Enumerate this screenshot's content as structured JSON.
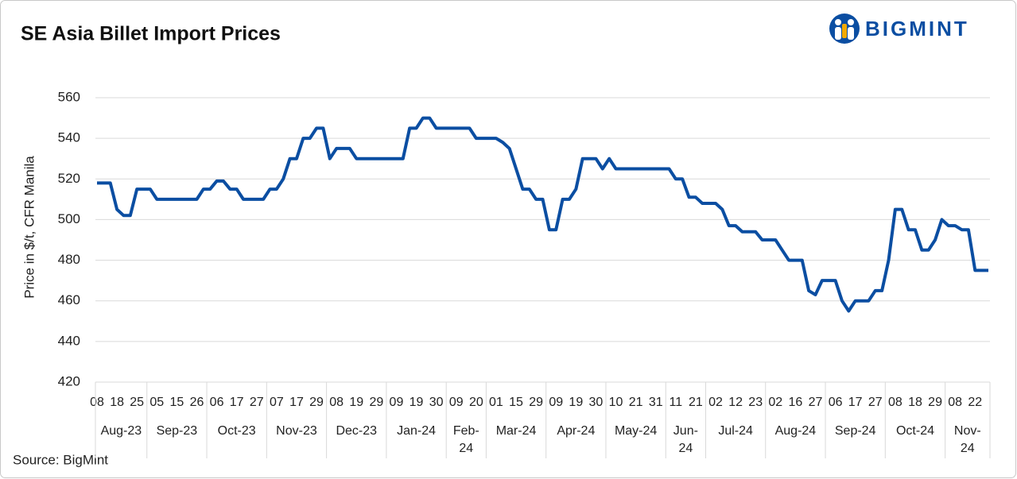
{
  "chart_data": {
    "type": "line",
    "title": "SE Asia Billet Import Prices",
    "brand": "BIGMINT",
    "source": "Source: BigMint",
    "y_label": "Price in $/t, CFR Manila",
    "color": "#0b4ea2",
    "ylim": [
      420,
      560
    ],
    "yticks": [
      420,
      440,
      460,
      480,
      500,
      520,
      540,
      560
    ],
    "grid": true,
    "months": [
      "Aug-23",
      "Sep-23",
      "Oct-23",
      "Nov-23",
      "Dec-23",
      "Jan-24",
      "Feb-24",
      "Mar-24",
      "Apr-24",
      "May-24",
      "Jun-24",
      "Jul-24",
      "Aug-24",
      "Sep-24",
      "Oct-24",
      "Nov-24"
    ],
    "categories": [
      "08",
      null,
      null,
      "18",
      null,
      null,
      "25",
      null,
      null,
      "05",
      null,
      null,
      "15",
      null,
      null,
      "26",
      null,
      null,
      "06",
      null,
      null,
      "17",
      null,
      null,
      "27",
      null,
      null,
      "07",
      null,
      null,
      "17",
      null,
      null,
      "29",
      null,
      null,
      "08",
      null,
      null,
      "19",
      null,
      null,
      "29",
      null,
      null,
      "09",
      null,
      null,
      "19",
      null,
      null,
      "30",
      null,
      null,
      "09",
      null,
      null,
      "20",
      null,
      null,
      "01",
      null,
      null,
      "15",
      null,
      null,
      "29",
      null,
      null,
      "09",
      null,
      null,
      "19",
      null,
      null,
      "30",
      null,
      null,
      "10",
      null,
      null,
      "21",
      null,
      null,
      "31",
      null,
      null,
      "11",
      null,
      null,
      "21",
      null,
      null,
      "02",
      null,
      null,
      "12",
      null,
      null,
      "23",
      null,
      null,
      "02",
      null,
      null,
      "16",
      null,
      null,
      "27",
      null,
      null,
      "06",
      null,
      null,
      "17",
      null,
      null,
      "27",
      null,
      null,
      "08",
      null,
      null,
      "18",
      null,
      null,
      "29",
      null,
      null,
      "08",
      null,
      null,
      "22",
      null,
      null
    ],
    "values": [
      518,
      518,
      518,
      505,
      502,
      502,
      515,
      515,
      515,
      510,
      510,
      510,
      510,
      510,
      510,
      510,
      515,
      515,
      519,
      519,
      515,
      515,
      510,
      510,
      510,
      510,
      515,
      515,
      520,
      530,
      530,
      540,
      540,
      545,
      545,
      530,
      535,
      535,
      535,
      530,
      530,
      530,
      530,
      530,
      530,
      530,
      530,
      545,
      545,
      550,
      550,
      545,
      545,
      545,
      545,
      545,
      545,
      540,
      540,
      540,
      540,
      538,
      535,
      525,
      515,
      515,
      510,
      510,
      495,
      495,
      510,
      510,
      515,
      530,
      530,
      530,
      525,
      530,
      525,
      525,
      525,
      525,
      525,
      525,
      525,
      525,
      525,
      520,
      520,
      511,
      511,
      508,
      508,
      508,
      505,
      497,
      497,
      494,
      494,
      494,
      490,
      490,
      490,
      485,
      480,
      480,
      480,
      465,
      463,
      470,
      470,
      470,
      460,
      455,
      460,
      460,
      460,
      465,
      465,
      480,
      505,
      505,
      495,
      495,
      485,
      485,
      490,
      500,
      497,
      497,
      495,
      495,
      475,
      475,
      475
    ]
  }
}
